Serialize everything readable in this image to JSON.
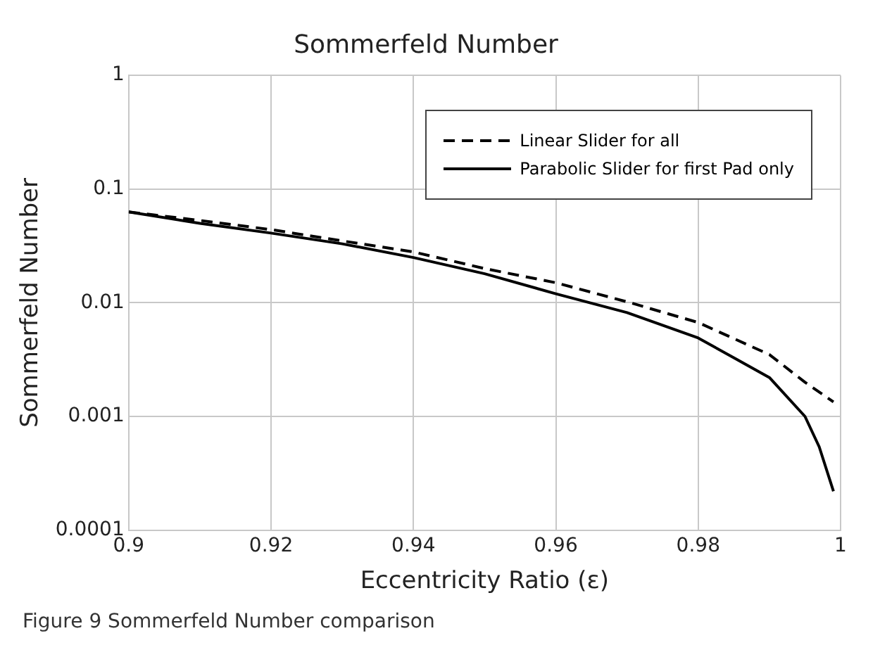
{
  "chart_data": {
    "type": "line",
    "title": "Sommerfeld Number",
    "xlabel": "Eccentricity Ratio (ε)",
    "ylabel": "Sommerfeld Number",
    "annotations": [
      "Figure 9  Sommerfeld Number comparison"
    ],
    "log": "y",
    "grid": true,
    "legend": "top right",
    "marker": "none",
    "xlim": [
      0.9,
      1
    ],
    "xticks": [
      0.9,
      0.92,
      0.94,
      0.96,
      0.98,
      1
    ],
    "ylim": [
      0.0001,
      1
    ],
    "yticks": [
      0.0001,
      0.001,
      0.01,
      0.1,
      1
    ],
    "series": [
      {
        "name": "Linear Slider for all",
        "color": "#000000",
        "line_style": "dashed",
        "x": [
          0.9,
          0.91,
          0.92,
          0.93,
          0.94,
          0.95,
          0.96,
          0.97,
          0.98,
          0.99,
          0.995,
          0.999
        ],
        "values": [
          0.063,
          0.053,
          0.044,
          0.035,
          0.028,
          0.02,
          0.015,
          0.0102,
          0.0067,
          0.0035,
          0.002,
          0.00134
        ]
      },
      {
        "name": "Parabolic Slider for first Pad only",
        "color": "#000000",
        "line_style": "solid",
        "x": [
          0.9,
          0.91,
          0.92,
          0.93,
          0.94,
          0.95,
          0.96,
          0.97,
          0.98,
          0.99,
          0.995,
          0.997,
          0.999
        ],
        "values": [
          0.063,
          0.05,
          0.041,
          0.033,
          0.025,
          0.018,
          0.012,
          0.0082,
          0.0049,
          0.0022,
          0.001,
          0.00054,
          0.00022
        ]
      }
    ]
  }
}
